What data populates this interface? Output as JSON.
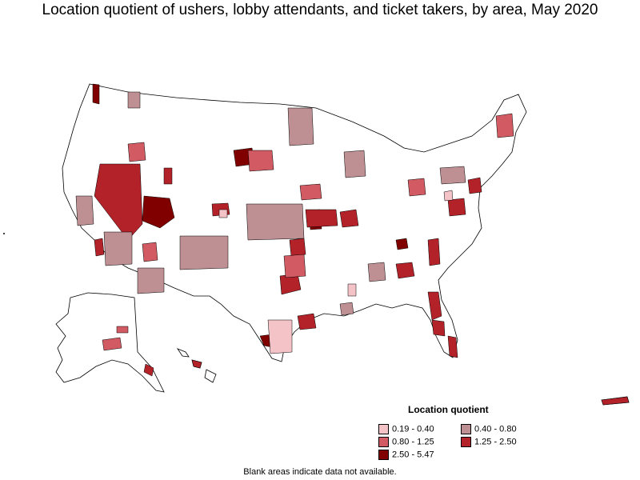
{
  "title": "Location quotient of ushers, lobby attendants, and ticket takers, by area, May 2020",
  "legend": {
    "title": "Location quotient",
    "items": [
      {
        "label": "0.19 - 0.40",
        "color": "#f4c3c8"
      },
      {
        "label": "0.40 - 0.80",
        "color": "#be9094"
      },
      {
        "label": "0.80 - 1.25",
        "color": "#d25a62"
      },
      {
        "label": "1.25 - 2.50",
        "color": "#b32129"
      },
      {
        "label": "2.50 - 5.47",
        "color": "#800000"
      }
    ]
  },
  "footnote": "Blank areas indicate data not available.",
  "colors": {
    "outline": "#000000",
    "background": "#ffffff"
  }
}
